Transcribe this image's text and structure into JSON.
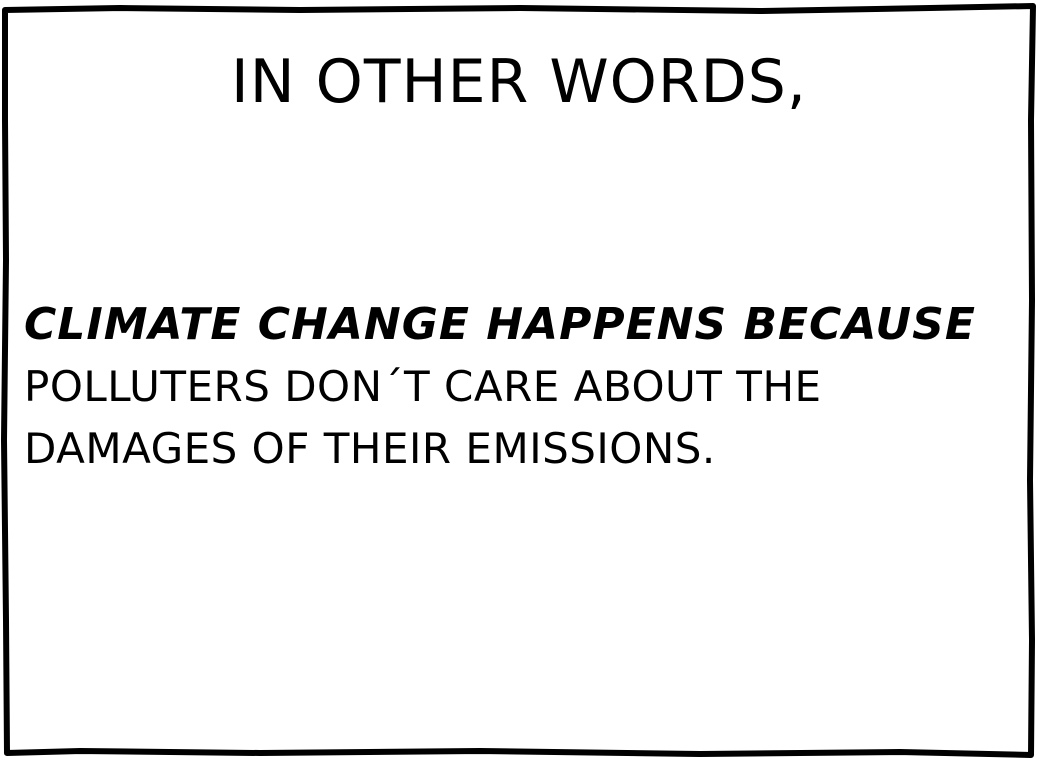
{
  "panel": {
    "heading": "IN OTHER WORDS,",
    "emphasis_line": "CLIMATE CHANGE HAPPENS BECAUSE",
    "body_line_1": "POLLUTERS DON´T CARE ABOUT THE",
    "body_line_2": "DAMAGES OF THEIR EMISSIONS."
  },
  "colors": {
    "ink": "#000000",
    "paper": "#ffffff"
  }
}
